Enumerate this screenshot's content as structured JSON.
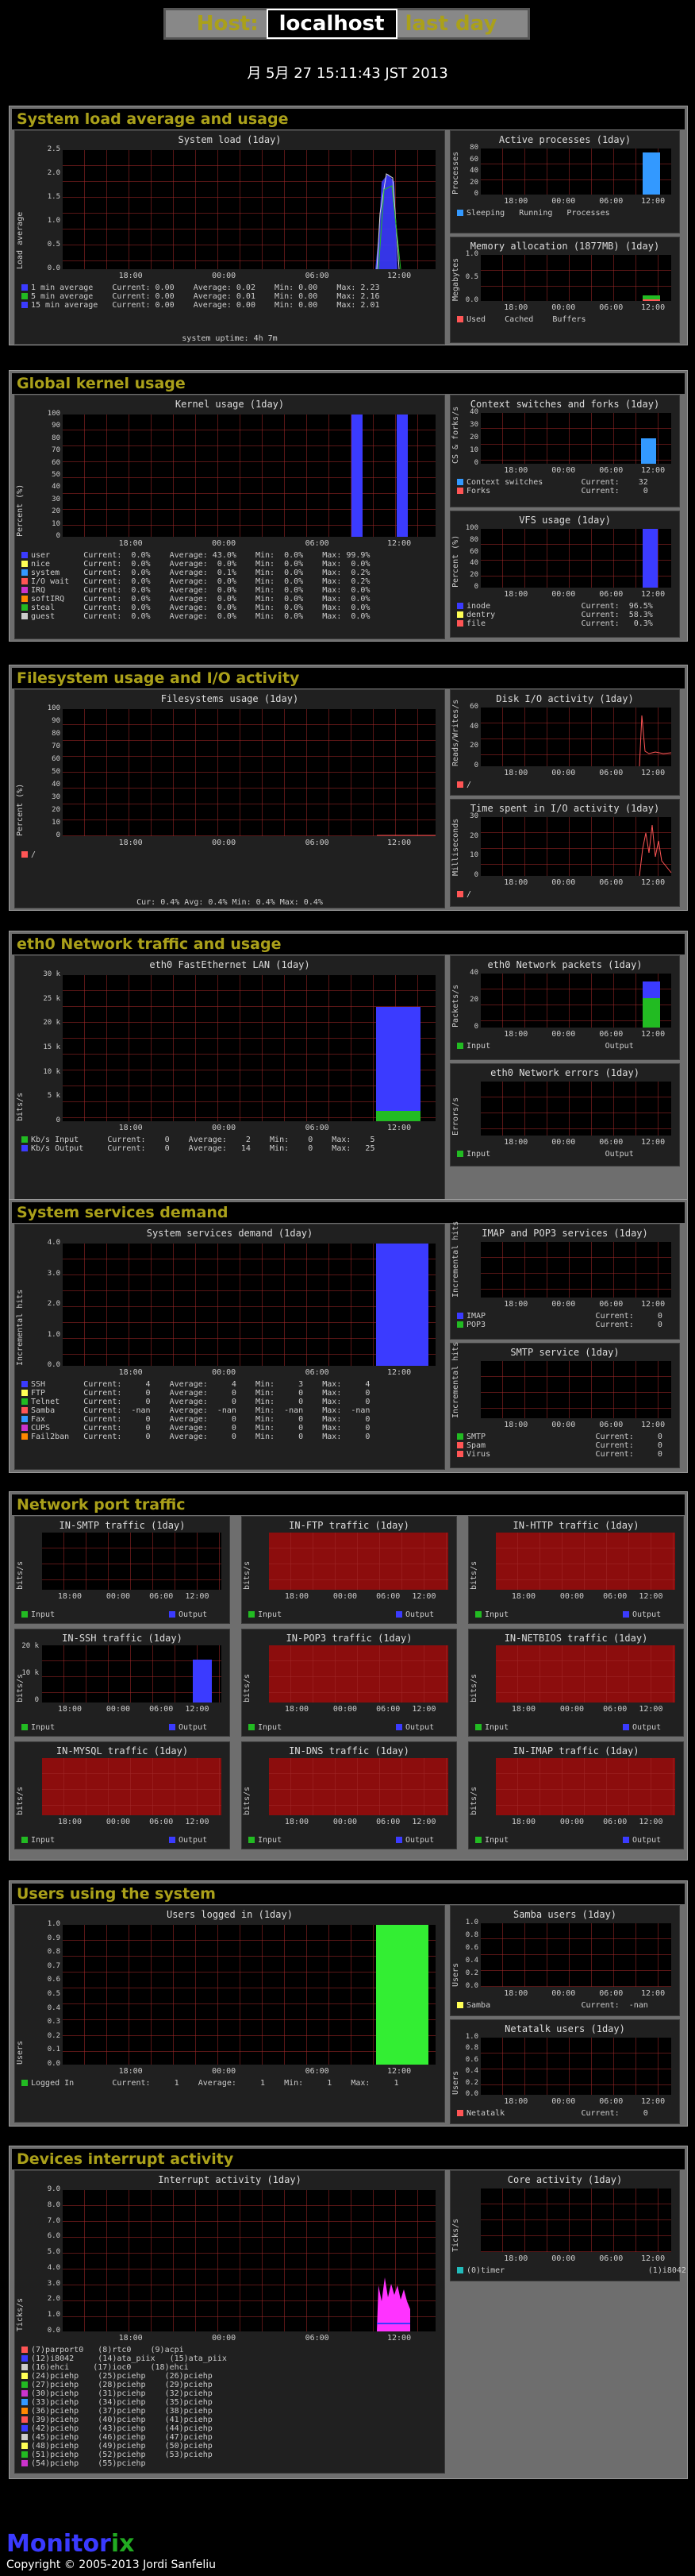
{
  "header": {
    "host_label": "Host:",
    "host": "localhost",
    "period": "last day"
  },
  "date": "月 5月 27 15:11:43 JST 2013",
  "sections": {
    "load": "System load average and usage",
    "kernel": "Global kernel usage",
    "fs": "Filesystem usage and I/O activity",
    "net": "eth0 Network traffic and usage",
    "svc": "System services demand",
    "port": "Network port traffic",
    "users": "Users using the system",
    "irq": "Devices interrupt activity"
  },
  "graphs": {
    "load": {
      "title": "System load  (1day)",
      "ylabel": "Load average",
      "yticks": [
        "2.5",
        "2.0",
        "1.5",
        "1.0",
        "0.5",
        "0.0"
      ],
      "xticks": [
        "18:00",
        "00:00",
        "06:00",
        "12:00"
      ],
      "legend": [
        "1 min average    Current: 0.00    Average: 0.02    Min: 0.00    Max: 2.23",
        "5 min average    Current: 0.00    Average: 0.01    Min: 0.00    Max: 2.16",
        "15 min average   Current: 0.00    Average: 0.00    Min: 0.00    Max: 2.01"
      ],
      "footer": "system uptime:  4h 7m"
    },
    "proc": {
      "title": "Active processes  (1day)",
      "ylabel": "Processes",
      "yticks": [
        "80",
        "60",
        "40",
        "20",
        "0"
      ],
      "xticks": [
        "18:00",
        "00:00",
        "06:00",
        "12:00"
      ],
      "legend": "Sleeping   Running   Processes"
    },
    "mem": {
      "title": "Memory allocation (1877MB)  (1day)",
      "ylabel": "Megabytes",
      "yticks": [
        "1.0",
        "0.5",
        "0.0"
      ],
      "xticks": [
        "18:00",
        "00:00",
        "06:00",
        "12:00"
      ],
      "legend": "Used    Cached    Buffers"
    },
    "kern": {
      "title": "Kernel usage  (1day)",
      "ylabel": "Percent (%)",
      "yticks": [
        "100",
        "90",
        "80",
        "70",
        "60",
        "50",
        "40",
        "30",
        "20",
        "10",
        "0"
      ],
      "xticks": [
        "18:00",
        "00:00",
        "06:00",
        "12:00"
      ],
      "legend": [
        "user       Current:  0.0%    Average: 43.0%    Min:  0.0%    Max: 99.9%",
        "nice       Current:  0.0%    Average:  0.0%    Min:  0.0%    Max:  0.0%",
        "system     Current:  0.0%    Average:  0.1%    Min:  0.0%    Max:  0.2%",
        "I/O wait   Current:  0.0%    Average:  0.0%    Min:  0.0%    Max:  0.2%",
        "IRQ        Current:  0.0%    Average:  0.0%    Min:  0.0%    Max:  0.0%",
        "softIRQ    Current:  0.0%    Average:  0.0%    Min:  0.0%    Max:  0.0%",
        "steal      Current:  0.0%    Average:  0.0%    Min:  0.0%    Max:  0.0%",
        "guest      Current:  0.0%    Average:  0.0%    Min:  0.0%    Max:  0.0%"
      ]
    },
    "ctx": {
      "title": "Context switches and forks  (1day)",
      "ylabel": "CS & forks/s",
      "yticks": [
        "40",
        "30",
        "20",
        "10",
        "0"
      ],
      "xticks": [
        "18:00",
        "00:00",
        "06:00",
        "12:00"
      ],
      "legend": [
        "Context switches        Current:    32",
        "Forks                   Current:     0"
      ]
    },
    "vfs": {
      "title": "VFS usage  (1day)",
      "ylabel": "Percent (%)",
      "yticks": [
        "100",
        "80",
        "60",
        "40",
        "20",
        "0"
      ],
      "xticks": [
        "18:00",
        "00:00",
        "06:00",
        "12:00"
      ],
      "legend": [
        "inode                   Current:  96.5%",
        "dentry                  Current:  58.3%",
        "file                    Current:   0.3%"
      ]
    },
    "fsu": {
      "title": "Filesystems usage  (1day)",
      "ylabel": "Percent (%)",
      "yticks": [
        "100",
        "90",
        "80",
        "70",
        "60",
        "50",
        "40",
        "30",
        "20",
        "10",
        "0"
      ],
      "xticks": [
        "18:00",
        "00:00",
        "06:00",
        "12:00"
      ],
      "legend": "/",
      "footer": "Cur:  0.4%    Avg:  0.4%    Min:  0.4%    Max:  0.4%"
    },
    "disk": {
      "title": "Disk I/O activity  (1day)",
      "ylabel": "Reads/Writes/s",
      "yticks": [
        "60",
        "40",
        "20",
        "0"
      ],
      "xticks": [
        "18:00",
        "00:00",
        "06:00",
        "12:00"
      ],
      "legend": "/"
    },
    "iotime": {
      "title": "Time spent in I/O activity  (1day)",
      "ylabel": "Milliseconds",
      "yticks": [
        "30",
        "20",
        "10",
        "0"
      ],
      "xticks": [
        "18:00",
        "00:00",
        "06:00",
        "12:00"
      ],
      "legend": "/"
    },
    "eth": {
      "title": "eth0 FastEthernet LAN  (1day)",
      "ylabel": "bits/s",
      "yticks": [
        "30 k",
        "25 k",
        "20 k",
        "15 k",
        "10 k",
        "5 k",
        "0"
      ],
      "xticks": [
        "18:00",
        "00:00",
        "06:00",
        "12:00"
      ],
      "legend": [
        "Kb/s Input      Current:    0    Average:    2    Min:    0    Max:    5",
        "Kb/s Output     Current:    0    Average:   14    Min:    0    Max:   25"
      ]
    },
    "pkt": {
      "title": "eth0 Network packets  (1day)",
      "ylabel": "Packets/s",
      "yticks": [
        "40",
        "20",
        "0"
      ],
      "xticks": [
        "18:00",
        "00:00",
        "06:00",
        "12:00"
      ],
      "legend": "Input                        Output"
    },
    "err": {
      "title": "eth0 Network errors  (1day)",
      "ylabel": "Errors/s",
      "yticks": [
        "",
        "",
        ""
      ],
      "xticks": [
        "18:00",
        "00:00",
        "06:00",
        "12:00"
      ],
      "legend": "Input                        Output"
    },
    "svc": {
      "title": "System services demand  (1day)",
      "ylabel": "Incremental hits",
      "yticks": [
        "4.0",
        "3.0",
        "2.0",
        "1.0",
        "0.0"
      ],
      "xticks": [
        "18:00",
        "00:00",
        "06:00",
        "12:00"
      ],
      "legend": [
        "SSH        Current:     4    Average:     4    Min:     3    Max:     4",
        "FTP        Current:     0    Average:     0    Min:     0    Max:     0",
        "Telnet     Current:     0    Average:     0    Min:     0    Max:     0",
        "Samba      Current:  -nan    Average:  -nan    Min:  -nan    Max:  -nan",
        "Fax        Current:     0    Average:     0    Min:     0    Max:     0",
        "CUPS       Current:     0    Average:     0    Min:     0    Max:     0",
        "Fail2ban   Current:     0    Average:     0    Min:     0    Max:     0"
      ]
    },
    "imap": {
      "title": "IMAP and POP3 services  (1day)",
      "ylabel": "Incremental hits",
      "xticks": [
        "18:00",
        "00:00",
        "06:00",
        "12:00"
      ],
      "legend": [
        "IMAP                       Current:     0",
        "POP3                       Current:     0"
      ]
    },
    "smtp": {
      "title": "SMTP service  (1day)",
      "ylabel": "Incremental hits",
      "xticks": [
        "18:00",
        "00:00",
        "06:00",
        "12:00"
      ],
      "legend": [
        "SMTP                       Current:     0",
        "Spam                       Current:     0",
        "Virus                      Current:     0"
      ]
    },
    "ports": [
      {
        "title": "IN-SMTP traffic  (1day)",
        "red": false,
        "ssh": false
      },
      {
        "title": "IN-FTP traffic  (1day)",
        "red": true,
        "ssh": false
      },
      {
        "title": "IN-HTTP traffic  (1day)",
        "red": true,
        "ssh": false
      },
      {
        "title": "IN-SSH traffic  (1day)",
        "red": false,
        "ssh": true
      },
      {
        "title": "IN-POP3 traffic  (1day)",
        "red": true,
        "ssh": false
      },
      {
        "title": "IN-NETBIOS traffic  (1day)",
        "red": true,
        "ssh": false
      },
      {
        "title": "IN-MYSQL traffic  (1day)",
        "red": true,
        "ssh": false
      },
      {
        "title": "IN-DNS traffic  (1day)",
        "red": true,
        "ssh": false
      },
      {
        "title": "IN-IMAP traffic  (1day)",
        "red": true,
        "ssh": false
      }
    ],
    "port_ylabel": "bits/s",
    "port_xticks": [
      "18:00",
      "00:00",
      "06:00",
      "12:00"
    ],
    "port_ssh_yticks": [
      "20 k",
      "10 k",
      "0"
    ],
    "port_legend_in": "Input",
    "port_legend_out": "Output",
    "logged": {
      "title": "Users logged in  (1day)",
      "ylabel": "Users",
      "yticks": [
        "1.0",
        "0.9",
        "0.8",
        "0.7",
        "0.6",
        "0.5",
        "0.4",
        "0.3",
        "0.2",
        "0.1",
        "0.0"
      ],
      "xticks": [
        "18:00",
        "00:00",
        "06:00",
        "12:00"
      ],
      "legend": "Logged In        Current:     1    Average:     1    Min:     1    Max:     1"
    },
    "samba": {
      "title": "Samba users  (1day)",
      "ylabel": "Users",
      "yticks": [
        "1.0",
        "0.8",
        "0.6",
        "0.4",
        "0.2",
        "0.0"
      ],
      "xticks": [
        "18:00",
        "00:00",
        "06:00",
        "12:00"
      ],
      "legend": "Samba                   Current:  -nan"
    },
    "netatalk": {
      "title": "Netatalk users  (1day)",
      "ylabel": "Users",
      "yticks": [
        "1.0",
        "0.8",
        "0.6",
        "0.4",
        "0.2",
        "0.0"
      ],
      "xticks": [
        "18:00",
        "00:00",
        "06:00",
        "12:00"
      ],
      "legend": "Netatalk                Current:     0"
    },
    "irq": {
      "title": "Interrupt activity  (1day)",
      "ylabel": "Ticks/s",
      "yticks": [
        "9.0",
        "8.0",
        "7.0",
        "6.0",
        "5.0",
        "4.0",
        "3.0",
        "2.0",
        "1.0",
        "0.0"
      ],
      "xticks": [
        "18:00",
        "00:00",
        "06:00",
        "12:00"
      ],
      "legend": [
        "(7)parport0   (8)rtc0    (9)acpi",
        "(12)i8042     (14)ata_piix   (15)ata_piix",
        "(16)ehci     (17)ioc0    (18)ehci",
        "(24)pciehp    (25)pciehp    (26)pciehp",
        "(27)pciehp    (28)pciehp    (29)pciehp",
        "(30)pciehp    (31)pciehp    (32)pciehp",
        "(33)pciehp    (34)pciehp    (35)pciehp",
        "(36)pciehp    (37)pciehp    (38)pciehp",
        "(39)pciehp    (40)pciehp    (41)pciehp",
        "(42)pciehp    (43)pciehp    (44)pciehp",
        "(45)pciehp    (46)pciehp    (47)pciehp",
        "(48)pciehp    (49)pciehp    (50)pciehp",
        "(51)pciehp    (52)pciehp    (53)pciehp",
        "(54)pciehp    (55)pciehp"
      ]
    },
    "core": {
      "title": "Core activity  (1day)",
      "ylabel": "Ticks/s",
      "xticks": [
        "18:00",
        "00:00",
        "06:00",
        "12:00"
      ],
      "legend": "(0)timer                              (1)i8042"
    }
  },
  "footer": {
    "logo_a": "Monitor",
    "logo_b": "ix",
    "copyright": "Copyright © 2005-2013 Jordi Sanfeliu"
  }
}
